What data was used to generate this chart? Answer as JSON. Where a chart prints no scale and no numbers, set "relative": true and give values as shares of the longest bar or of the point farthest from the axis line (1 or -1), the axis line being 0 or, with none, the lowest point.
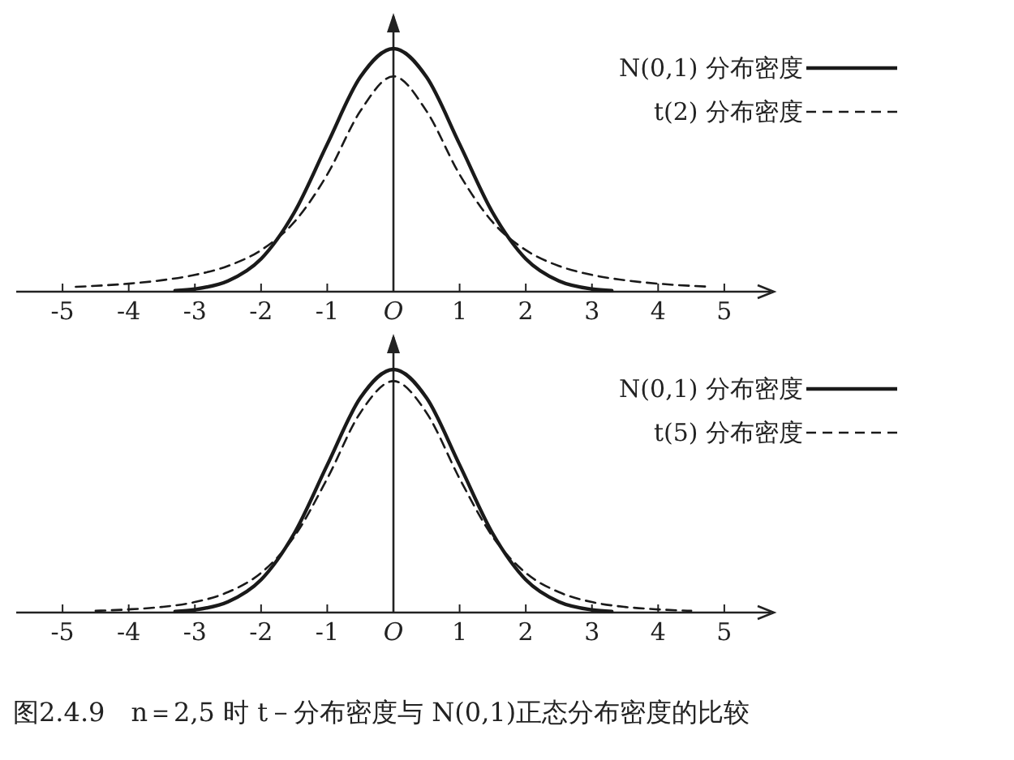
{
  "chart_data": [
    {
      "type": "line",
      "relative": true,
      "xlim": [
        -5.7,
        5.7
      ],
      "xticks": [
        -5,
        -4,
        -3,
        -2,
        -1,
        {
          "value": 0,
          "label": "O"
        },
        1,
        2,
        3,
        4,
        5
      ],
      "legend": "top right",
      "series": [
        {
          "name": "N(0,1) 分布密度",
          "color": "#1a1a1a",
          "line_style": "solid",
          "x": [
            -3.3,
            -3,
            -2.5,
            -2,
            -1.5,
            -1,
            -0.5,
            0,
            0.5,
            1,
            1.5,
            2,
            2.5,
            3,
            3.3
          ],
          "values": [
            0.004,
            0.011,
            0.044,
            0.135,
            0.325,
            0.607,
            0.883,
            1,
            0.883,
            0.607,
            0.325,
            0.135,
            0.044,
            0.011,
            0.004
          ]
        },
        {
          "name": "t(2) 分布密度",
          "color": "#1a1a1a",
          "line_style": "dashed",
          "x": [
            -4.8,
            -4.5,
            -4,
            -3.5,
            -3,
            -2.5,
            -2,
            -1.5,
            -1,
            -0.5,
            0,
            0.5,
            1,
            1.5,
            2,
            2.5,
            3,
            3.5,
            4,
            4.5,
            4.8
          ],
          "values": [
            0.02,
            0.024,
            0.033,
            0.047,
            0.069,
            0.106,
            0.171,
            0.286,
            0.482,
            0.743,
            0.886,
            0.743,
            0.482,
            0.286,
            0.171,
            0.106,
            0.069,
            0.047,
            0.033,
            0.024,
            0.02
          ]
        }
      ]
    },
    {
      "type": "line",
      "relative": true,
      "xlim": [
        -5.7,
        5.7
      ],
      "xticks": [
        -5,
        -4,
        -3,
        -2,
        -1,
        {
          "value": 0,
          "label": "O"
        },
        1,
        2,
        3,
        4,
        5
      ],
      "legend": "top right",
      "annotations": [
        "图2.4.9　n＝2,5 时 t－分布密度与 N(0,1)正态分布密度的比较"
      ],
      "series": [
        {
          "name": "N(0,1) 分布密度",
          "color": "#1a1a1a",
          "line_style": "solid",
          "x": [
            -3.3,
            -3,
            -2.5,
            -2,
            -1.5,
            -1,
            -0.5,
            0,
            0.5,
            1,
            1.5,
            2,
            2.5,
            3,
            3.3
          ],
          "values": [
            0.004,
            0.011,
            0.044,
            0.135,
            0.325,
            0.607,
            0.883,
            1,
            0.883,
            0.607,
            0.325,
            0.135,
            0.044,
            0.011,
            0.004
          ]
        },
        {
          "name": "t(5) 分布密度",
          "color": "#1a1a1a",
          "line_style": "dashed",
          "x": [
            -4.5,
            -4,
            -3.5,
            -3,
            -2.5,
            -2,
            -1.5,
            -1,
            -0.5,
            0,
            0.5,
            1,
            1.5,
            2,
            2.5,
            3,
            3.5,
            4,
            4.5
          ],
          "values": [
            0.007,
            0.013,
            0.023,
            0.043,
            0.084,
            0.163,
            0.312,
            0.551,
            0.822,
            0.952,
            0.822,
            0.551,
            0.312,
            0.163,
            0.084,
            0.043,
            0.023,
            0.013,
            0.007
          ]
        }
      ]
    }
  ]
}
